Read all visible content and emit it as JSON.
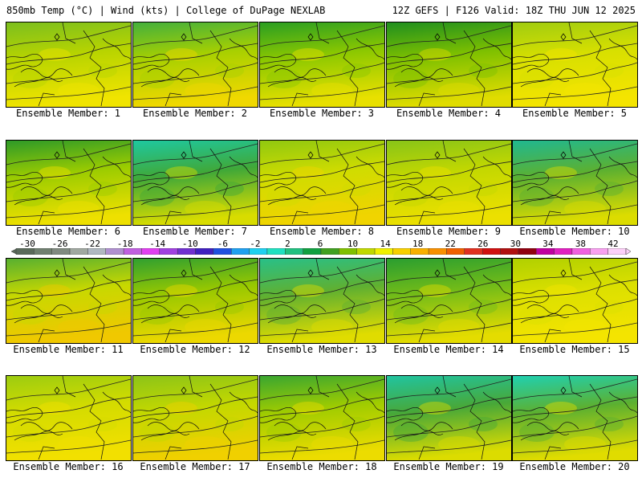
{
  "header": {
    "left": "850mb Temp (°C) | Wind (kts) | College of DuPage NEXLAB",
    "right": "12Z GEFS | F126 Valid: 18Z THU JUN 12 2025"
  },
  "colorbar": {
    "ticks": [
      "-30",
      "-26",
      "-22",
      "-18",
      "-14",
      "-10",
      "-6",
      "-2",
      "2",
      "6",
      "10",
      "14",
      "18",
      "22",
      "26",
      "30",
      "34",
      "38",
      "42"
    ],
    "colors": [
      "#5a6a5a",
      "#708070",
      "#808a80",
      "#a0a8a0",
      "#b0b8c0",
      "#b090d0",
      "#c060e0",
      "#e040f0",
      "#a040e0",
      "#7030d0",
      "#4020c0",
      "#2050e0",
      "#20a0f0",
      "#20d0f0",
      "#20e0c0",
      "#20c080",
      "#10a040",
      "#40a020",
      "#80c000",
      "#c0d800",
      "#f0f000",
      "#f8d000",
      "#f8b000",
      "#f89000",
      "#f06000",
      "#e03020",
      "#d01010",
      "#b01010",
      "#900010",
      "#c000a0",
      "#e020c0",
      "#f060e0",
      "#f8a0f0",
      "#fcd0f8"
    ]
  },
  "members": [
    {
      "label": "Ensemble Member: 1",
      "north": "#7cbf1e",
      "mid": "#b8d400",
      "south": "#f0e400"
    },
    {
      "label": "Ensemble Member: 2",
      "north": "#44b03c",
      "mid": "#a8d000",
      "south": "#f0d800"
    },
    {
      "label": "Ensemble Member: 3",
      "north": "#2a9e22",
      "mid": "#8cc800",
      "south": "#e8e000"
    },
    {
      "label": "Ensemble Member: 4",
      "north": "#1f8f1f",
      "mid": "#7ec000",
      "south": "#e0dc00"
    },
    {
      "label": "Ensemble Member: 5",
      "north": "#a0cc10",
      "mid": "#d8e000",
      "south": "#f4e400"
    },
    {
      "label": "Ensemble Member: 6",
      "north": "#2e9a28",
      "mid": "#9ccc00",
      "south": "#eee000"
    },
    {
      "label": "Ensemble Member: 7",
      "north": "#1ec8a0",
      "mid": "#40a838",
      "south": "#d8dc00"
    },
    {
      "label": "Ensemble Member: 8",
      "north": "#90c810",
      "mid": "#d0dc00",
      "south": "#f0d400"
    },
    {
      "label": "Ensemble Member: 9",
      "north": "#88c418",
      "mid": "#c4d800",
      "south": "#ece000"
    },
    {
      "label": "Ensemble Member: 10",
      "north": "#20b890",
      "mid": "#5cb030",
      "south": "#dcdc00"
    },
    {
      "label": "Ensemble Member: 11",
      "north": "#58b030",
      "mid": "#c8d800",
      "south": "#f0c800"
    },
    {
      "label": "Ensemble Member: 12",
      "north": "#30a030",
      "mid": "#98c800",
      "south": "#ecd800"
    },
    {
      "label": "Ensemble Member: 13",
      "north": "#28c088",
      "mid": "#60b030",
      "south": "#e0dc00"
    },
    {
      "label": "Ensemble Member: 14",
      "north": "#2a9e30",
      "mid": "#74bc18",
      "south": "#e4dc00"
    },
    {
      "label": "Ensemble Member: 15",
      "north": "#b0d000",
      "mid": "#dce000",
      "south": "#f4e400"
    },
    {
      "label": "Ensemble Member: 16",
      "north": "#9ccc10",
      "mid": "#d4dc00",
      "south": "#f2e000"
    },
    {
      "label": "Ensemble Member: 17",
      "north": "#8cc418",
      "mid": "#c4d800",
      "south": "#f0d000"
    },
    {
      "label": "Ensemble Member: 18",
      "north": "#3aa630",
      "mid": "#a0cc00",
      "south": "#ecdc00"
    },
    {
      "label": "Ensemble Member: 19",
      "north": "#20c4a0",
      "mid": "#48a838",
      "south": "#dcdc00"
    },
    {
      "label": "Ensemble Member: 20",
      "north": "#20d0b0",
      "mid": "#5cb030",
      "south": "#e0dc00"
    }
  ]
}
